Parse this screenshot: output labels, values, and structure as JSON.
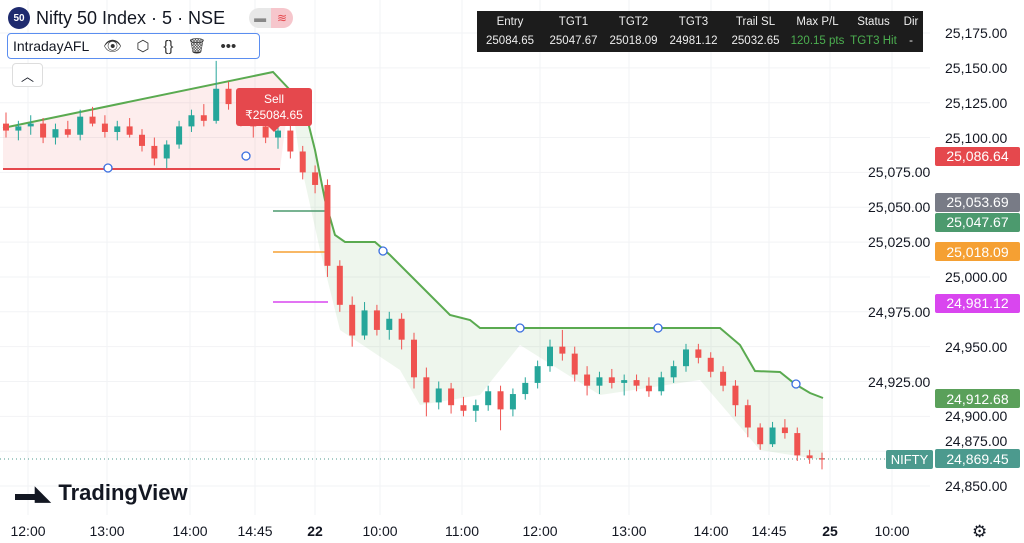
{
  "header": {
    "badge": "50",
    "title": "Nifty 50 Index · 5 · NSE",
    "pill_left_icon": "minus-icon",
    "pill_right_icon": "approx-wave-icon"
  },
  "indicator": {
    "name": "IntradayAFL",
    "icons": [
      "eye-icon",
      "settings-hex-icon",
      "source-code-icon",
      "trash-icon",
      "more-icon"
    ]
  },
  "collapse_icon": "chevron-up-icon",
  "table": {
    "headers": [
      "Entry",
      "TGT1",
      "TGT2",
      "TGT3",
      "Trail SL",
      "Max P/L",
      "Status",
      "Dir"
    ],
    "values": [
      "25084.65",
      "25047.67",
      "25018.09",
      "24981.12",
      "25032.65",
      "120.15 pts",
      "TGT3 Hit",
      "-"
    ]
  },
  "sell_label": {
    "title": "Sell",
    "price": "₹25084.65"
  },
  "price_axis": [
    "25,175.00",
    "25,150.00",
    "25,125.00",
    "25,100.00",
    "25,075.00",
    "25,050.00",
    "25,025.00",
    "25,000.00",
    "24,975.00",
    "24,950.00",
    "24,925.00",
    "24,900.00",
    "24,875.00",
    "24,850.00"
  ],
  "badges": [
    {
      "value": "25,086.64",
      "color": "#e5484d",
      "price": 25086.64
    },
    {
      "value": "25,053.69",
      "color": "#787b86",
      "price": 25053.69
    },
    {
      "value": "25,047.67",
      "color": "#4c9a6e",
      "price": 25047.67
    },
    {
      "value": "25,018.09",
      "color": "#f5a033",
      "price": 25018.09
    },
    {
      "value": "24,981.12",
      "color": "#d946ef",
      "price": 24981.12
    },
    {
      "value": "24,912.68",
      "color": "#5aa05a",
      "price": 24912.68
    },
    {
      "value": "24,869.45",
      "color": "#4c9a8e",
      "price": 24869.45
    }
  ],
  "symbol_tag": "NIFTY",
  "time_axis": [
    "12:00",
    "13:00",
    "14:00",
    "14:45",
    "22",
    "10:00",
    "11:00",
    "12:00",
    "13:00",
    "14:00",
    "14:45",
    "25",
    "10:00"
  ],
  "brand": "TradingView",
  "colors": {
    "up": "#26a69a",
    "down": "#ef5350",
    "trail": "#5aaa50",
    "stop": "#e5484d"
  },
  "chart_data": {
    "type": "candlestick",
    "ylim": [
      24835,
      25185
    ],
    "candles": [
      [
        25110,
        25118,
        25100,
        25105
      ],
      [
        25105,
        25112,
        25098,
        25108
      ],
      [
        25108,
        25116,
        25102,
        25110
      ],
      [
        25110,
        25114,
        25096,
        25100
      ],
      [
        25100,
        25110,
        25095,
        25106
      ],
      [
        25106,
        25112,
        25100,
        25102
      ],
      [
        25102,
        25120,
        25098,
        25115
      ],
      [
        25115,
        25122,
        25108,
        25110
      ],
      [
        25110,
        25116,
        25100,
        25104
      ],
      [
        25104,
        25112,
        25098,
        25108
      ],
      [
        25108,
        25114,
        25100,
        25102
      ],
      [
        25102,
        25106,
        25090,
        25094
      ],
      [
        25094,
        25100,
        25080,
        25085
      ],
      [
        25085,
        25098,
        25078,
        25095
      ],
      [
        25095,
        25112,
        25092,
        25108
      ],
      [
        25108,
        25120,
        25104,
        25116
      ],
      [
        25116,
        25124,
        25108,
        25112
      ],
      [
        25112,
        25155,
        25110,
        25135
      ],
      [
        25135,
        25140,
        25120,
        25124
      ],
      [
        25124,
        25128,
        25108,
        25112
      ],
      [
        25112,
        25118,
        25100,
        25108
      ],
      [
        25108,
        25114,
        25096,
        25100
      ],
      [
        25100,
        25112,
        25092,
        25105
      ],
      [
        25105,
        25110,
        25085,
        25090
      ],
      [
        25090,
        25094,
        25070,
        25075
      ],
      [
        25075,
        25080,
        25060,
        25066
      ],
      [
        25066,
        25070,
        25000,
        25008
      ],
      [
        25008,
        25012,
        24975,
        24980
      ],
      [
        24980,
        24986,
        24950,
        24958
      ],
      [
        24958,
        24982,
        24955,
        24976
      ],
      [
        24976,
        24980,
        24958,
        24962
      ],
      [
        24962,
        24975,
        24955,
        24970
      ],
      [
        24970,
        24974,
        24948,
        24955
      ],
      [
        24955,
        24960,
        24920,
        24928
      ],
      [
        24928,
        24935,
        24900,
        24910
      ],
      [
        24910,
        24925,
        24905,
        24920
      ],
      [
        24920,
        24924,
        24902,
        24908
      ],
      [
        24908,
        24914,
        24900,
        24904
      ],
      [
        24904,
        24912,
        24896,
        24908
      ],
      [
        24908,
        24922,
        24904,
        24918
      ],
      [
        24918,
        24922,
        24890,
        24905
      ],
      [
        24905,
        24920,
        24900,
        24916
      ],
      [
        24916,
        24928,
        24912,
        24924
      ],
      [
        24924,
        24940,
        24920,
        24936
      ],
      [
        24936,
        24955,
        24932,
        24950
      ],
      [
        24950,
        24962,
        24940,
        24945
      ],
      [
        24945,
        24950,
        24925,
        24930
      ],
      [
        24930,
        24936,
        24915,
        24922
      ],
      [
        24922,
        24932,
        24916,
        24928
      ],
      [
        24928,
        24934,
        24920,
        24924
      ],
      [
        24924,
        24930,
        24915,
        24926
      ],
      [
        24926,
        24930,
        24918,
        24922
      ],
      [
        24922,
        24928,
        24914,
        24918
      ],
      [
        24918,
        24932,
        24915,
        24928
      ],
      [
        24928,
        24940,
        24924,
        24936
      ],
      [
        24936,
        24952,
        24932,
        24948
      ],
      [
        24948,
        24952,
        24938,
        24942
      ],
      [
        24942,
        24946,
        24928,
        24932
      ],
      [
        24932,
        24936,
        24918,
        24922
      ],
      [
        24922,
        24926,
        24900,
        24908
      ],
      [
        24908,
        24912,
        24885,
        24892
      ],
      [
        24892,
        24895,
        24876,
        24880
      ],
      [
        24880,
        24896,
        24878,
        24892
      ],
      [
        24892,
        24898,
        24884,
        24888
      ],
      [
        24888,
        24892,
        24868,
        24872
      ],
      [
        24872,
        24876,
        24866,
        24870
      ],
      [
        24870,
        24874,
        24862,
        24869
      ]
    ],
    "trail_sl": "stepped trailing stop line",
    "stop_level": 25077.5,
    "targets": [
      25047.67,
      25018.09,
      24981.12
    ]
  }
}
